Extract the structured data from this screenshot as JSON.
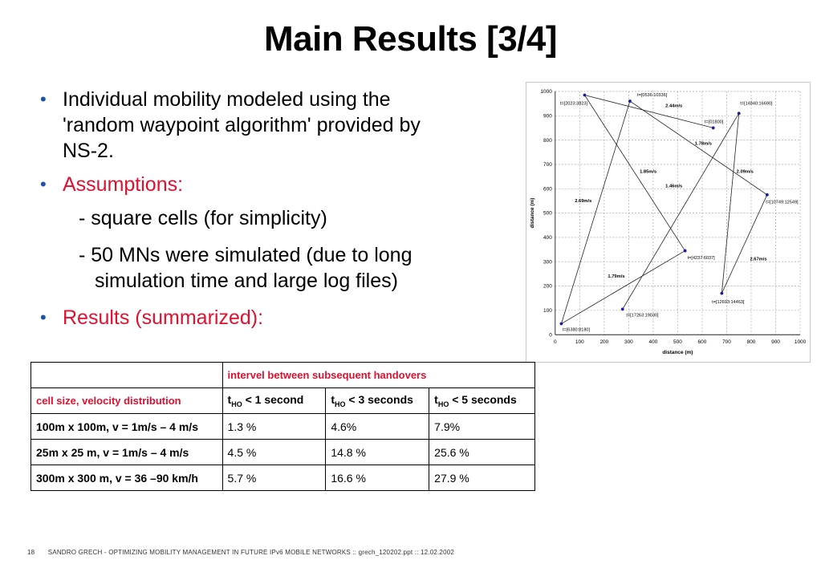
{
  "slide": {
    "title": "Main Results [3/4]"
  },
  "bullets": {
    "item1_line1": "Individual mobility modeled using the",
    "item1_line2": "'random waypoint algorithm' provided by",
    "item1_line3": "NS-2.",
    "item2": "Assumptions:",
    "sub1": "- square cells (for simplicity)",
    "sub2_line1": "- 50 MNs were simulated (due to long",
    "sub2_line2": "simulation time and large log files)",
    "item3": "Results (summarized):"
  },
  "chart_data": {
    "type": "line",
    "xlabel": "distance (m)",
    "ylabel": "distance (m)",
    "xlim": [
      0,
      1000
    ],
    "ylim": [
      0,
      1000
    ],
    "xticks": [
      0,
      100,
      200,
      300,
      400,
      500,
      600,
      700,
      800,
      900,
      1000
    ],
    "yticks": [
      0,
      100,
      200,
      300,
      400,
      500,
      600,
      700,
      800,
      900,
      1000
    ],
    "grid": true,
    "path": [
      {
        "x": 645,
        "y": 850
      },
      {
        "x": 120,
        "y": 985
      },
      {
        "x": 530,
        "y": 345
      },
      {
        "x": 25,
        "y": 45
      },
      {
        "x": 305,
        "y": 960
      },
      {
        "x": 865,
        "y": 575
      },
      {
        "x": 680,
        "y": 170
      },
      {
        "x": 750,
        "y": 910
      },
      {
        "x": 275,
        "y": 105
      }
    ],
    "point_labels": [
      {
        "text": "t=[0536:10336]",
        "x": 335,
        "y": 980
      },
      {
        "text": "t=[2023:3823]",
        "x": 20,
        "y": 945
      },
      {
        "text": "t=[14840:16690]",
        "x": 755,
        "y": 945
      },
      {
        "text": "t=[01800]",
        "x": 610,
        "y": 870
      },
      {
        "text": "t=[10749:12549]",
        "x": 860,
        "y": 540
      },
      {
        "text": "t=[4237:6037]",
        "x": 540,
        "y": 310
      },
      {
        "text": "t=[12693:14463]",
        "x": 640,
        "y": 130
      },
      {
        "text": "t=[17263:19030]",
        "x": 290,
        "y": 75
      },
      {
        "text": "t=[6380:8180]",
        "x": 30,
        "y": 15
      }
    ],
    "speed_labels": [
      {
        "text": "2.44m/s",
        "x": 450,
        "y": 935
      },
      {
        "text": "1.78m/s",
        "x": 570,
        "y": 780
      },
      {
        "text": "1.85m/s",
        "x": 345,
        "y": 665
      },
      {
        "text": "2.09m/s",
        "x": 740,
        "y": 665
      },
      {
        "text": "1.46m/s",
        "x": 450,
        "y": 605
      },
      {
        "text": "2.69m/s",
        "x": 80,
        "y": 545
      },
      {
        "text": "2.67m/s",
        "x": 795,
        "y": 305
      },
      {
        "text": "1.79m/s",
        "x": 215,
        "y": 235
      }
    ]
  },
  "table": {
    "header_span": "intervel between subsequent handovers",
    "col_label": "cell size, velocity distribution",
    "t_main": "t",
    "t_sub": "HO",
    "col2_rest": " < 1 second",
    "col3_rest": " < 3 seconds",
    "col4_rest": " < 5 seconds",
    "rows": [
      {
        "label": "100m x 100m, v = 1m/s – 4 m/s",
        "c1": "1.3 %",
        "c2": "4.6%",
        "c3": "7.9%"
      },
      {
        "label": "25m x 25 m, v = 1m/s – 4 m/s",
        "c1": "4.5 %",
        "c2": "14.8 %",
        "c3": "25.6 %"
      },
      {
        "label": "300m x 300 m, v = 36 –90 km/h",
        "c1": "5.7 %",
        "c2": "16.6 %",
        "c3": "27.9 %"
      }
    ]
  },
  "footer": {
    "page": "18",
    "text": "SANDRO GRECH - OPTIMIZING MOBILITY MANAGEMENT IN FUTURE IPv6 MOBILE NETWORKS  ::  grech_120202.ppt  ::  12.02.2002"
  },
  "colors": {
    "accent_red": "#e0102f",
    "bullet_blue": "#1f4fa8",
    "marker": "#1a1aa0"
  }
}
